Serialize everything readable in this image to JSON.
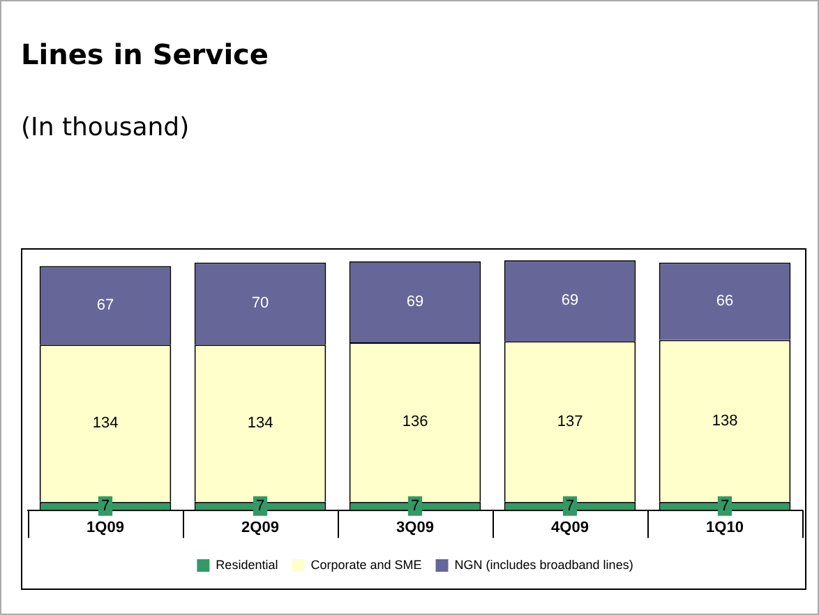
{
  "chart_data": {
    "type": "bar",
    "title": "Lines in Service",
    "subtitle": "(In thousand)",
    "stacked": true,
    "data_labels": true,
    "legend": "bottom",
    "categories": [
      "1Q09",
      "2Q09",
      "3Q09",
      "4Q09",
      "1Q10"
    ],
    "series": [
      {
        "name": "Residential",
        "color": "#339966",
        "values": [
          7,
          7,
          7,
          7,
          7
        ]
      },
      {
        "name": "Corporate and SME",
        "color": "#ffffcc",
        "values": [
          134,
          134,
          136,
          137,
          138
        ]
      },
      {
        "name": "NGN (includes broadband lines)",
        "color": "#666699",
        "values": [
          67,
          70,
          69,
          69,
          66
        ]
      }
    ]
  }
}
